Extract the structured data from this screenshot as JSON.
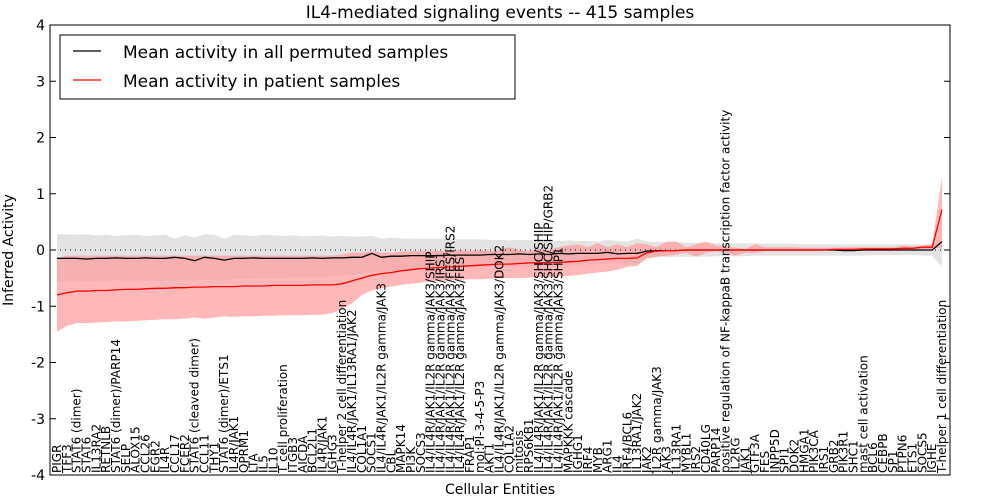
{
  "chart_data": {
    "type": "line",
    "title": "IL4-mediated signaling events -- 415 samples",
    "xlabel": "Cellular Entities",
    "ylabel": "Inferred Activity",
    "ylim": [
      -4,
      4
    ],
    "yticks": [
      "-4",
      "-3",
      "-2",
      "-1",
      "0",
      "1",
      "2",
      "3",
      "4"
    ],
    "legend_placement": "top-left",
    "reference_line": 0,
    "categories": [
      "PIGR",
      "TFF3",
      "STAT6 (dimer)",
      "STAT6",
      "IL13RA2",
      "RETNLB",
      "STAT6 (dimer)/PARP14",
      "SELP",
      "ALOX15",
      "CCL26",
      "EGR2",
      "IL4R",
      "CCL17",
      "FCER2",
      "STAT6 (cleaved dimer)",
      "CCL11",
      "THY1",
      "STAT6 (dimer)/ETS1",
      "IL4R/JAK1",
      "OPRM1",
      "LTA",
      "IL5",
      "IL10",
      "T cell proliferation",
      "ITGB3",
      "AICDA",
      "BCL2L1",
      "IL4R/JAK1",
      "IGHG3",
      "T-helper 2 cell differentiation",
      "IL4/IL4R/JAK1/IL13RA1/JAK2",
      "COL1A1",
      "SOCS1",
      "IL4/IL4R/JAK1/IL2R gamma/JAK3",
      "CBL",
      "MAPK14",
      "PI3K",
      "SOCS3",
      "IL4/IL4R/JAK1/IL2R gamma/JAK3/SHIP",
      "IL4/IL4R/JAK1/IL2R gamma/JAK3/IRS1",
      "IL4/IL4R/JAK1/IL2R gamma/JAK3/FES/IRS2",
      "IL4/IL4R/JAK1/IL2R gamma/JAK3/FES",
      "FRAP1",
      "mol:PI-3-4-5-P3",
      "AKT1",
      "IL4/IL4R/JAK1/IL2R gamma/JAK3/DOK2",
      "COL1A2",
      "mitosis",
      "RPS6KB1",
      "IL4/IL4R/JAK1/IL2R gamma/JAK3/SHC/SHIP",
      "IL4/IL4R/JAK1/IL2R gamma/JAK3/SHC/SHIP/GRB2",
      "IL4/IL4R/JAK1/IL2R gamma/JAK3/SHP1",
      "MAPKKK cascade",
      "IGHG1",
      "IRF4",
      "MYB",
      "ARG1",
      "IL4",
      "IRF4/BCL6",
      "IL13RA1/JAK2",
      "JAK2",
      "IL2R gamma/JAK3",
      "JAK3",
      "IL13RA1",
      "MYBL1",
      "IRS2",
      "CD40LG",
      "PARP14",
      "positive regulation of NF-kappaB transcription factor activity",
      "IL2RG",
      "JAK1",
      "GTF3A",
      "FES",
      "INPP5D",
      "SPI1",
      "DOK2",
      "HMGA1",
      "PIK3CA",
      "IRS1",
      "GRB2",
      "PIK3R1",
      "SHC1",
      "mast cell activation",
      "BCL6",
      "CEBPB",
      "SP1",
      "PTPN6",
      "ETS1",
      "SOCS5",
      "IGHE",
      "T-helper 1 cell differentiation"
    ],
    "series": [
      {
        "name": "Mean activity in all permuted samples",
        "color": "#000000",
        "band_color": "#cccccc",
        "values": [
          -0.15,
          -0.15,
          -0.15,
          -0.16,
          -0.15,
          -0.15,
          -0.14,
          -0.15,
          -0.15,
          -0.14,
          -0.15,
          -0.15,
          -0.13,
          -0.15,
          -0.19,
          -0.13,
          -0.15,
          -0.18,
          -0.15,
          -0.15,
          -0.14,
          -0.15,
          -0.15,
          -0.15,
          -0.15,
          -0.15,
          -0.14,
          -0.15,
          -0.14,
          -0.14,
          -0.13,
          -0.13,
          -0.06,
          -0.13,
          -0.11,
          -0.11,
          -0.1,
          -0.1,
          -0.1,
          -0.1,
          -0.09,
          -0.09,
          -0.09,
          -0.09,
          -0.08,
          -0.08,
          -0.08,
          -0.07,
          -0.08,
          -0.07,
          -0.08,
          -0.06,
          -0.07,
          -0.06,
          -0.06,
          -0.06,
          -0.04,
          -0.07,
          -0.06,
          -0.06,
          -0.02,
          -0.01,
          -0.01,
          -0.01,
          0,
          0,
          0,
          0,
          0,
          0,
          0,
          0,
          0,
          0,
          0,
          0,
          0,
          0,
          0,
          0,
          -0.01,
          -0.01,
          0,
          0,
          0,
          0,
          0,
          0,
          0,
          0,
          0.15
        ],
        "upper": [
          0.28,
          0.28,
          0.27,
          0.28,
          0.26,
          0.27,
          0.25,
          0.26,
          0.27,
          0.25,
          0.26,
          0.27,
          0.2,
          0.26,
          0.22,
          0.28,
          0.27,
          0.2,
          0.27,
          0.26,
          0.25,
          0.27,
          0.26,
          0.25,
          0.26,
          0.24,
          0.25,
          0.26,
          0.24,
          0.25,
          0.24,
          0.24,
          0.25,
          0.2,
          0.22,
          0.21,
          0.2,
          0.2,
          0.2,
          0.2,
          0.19,
          0.19,
          0.19,
          0.19,
          0.18,
          0.18,
          0.17,
          0.18,
          0.18,
          0.17,
          0.17,
          0.16,
          0.17,
          0.16,
          0.16,
          0.15,
          0.18,
          0.16,
          0.15,
          0.2,
          0.15,
          0.14,
          0.14,
          0.14,
          0.13,
          0.13,
          0.13,
          0.12,
          0.12,
          0.12,
          0.12,
          0.12,
          0.11,
          0.11,
          0.11,
          0.11,
          0.1,
          0.1,
          0.1,
          0.1,
          0.1,
          0.1,
          0.1,
          0.1,
          0.1,
          0.1,
          0.1,
          0.1,
          0.1,
          0.1,
          0.1
        ],
        "lower": [
          -0.55,
          -0.55,
          -0.55,
          -0.56,
          -0.55,
          -0.55,
          -0.54,
          -0.55,
          -0.55,
          -0.54,
          -0.55,
          -0.55,
          -0.52,
          -0.54,
          -0.56,
          -0.52,
          -0.53,
          -0.55,
          -0.52,
          -0.52,
          -0.5,
          -0.5,
          -0.5,
          -0.5,
          -0.49,
          -0.49,
          -0.48,
          -0.48,
          -0.47,
          -0.46,
          -0.44,
          -0.42,
          -0.38,
          -0.4,
          -0.38,
          -0.37,
          -0.36,
          -0.35,
          -0.34,
          -0.33,
          -0.33,
          -0.32,
          -0.32,
          -0.31,
          -0.3,
          -0.3,
          -0.3,
          -0.29,
          -0.29,
          -0.28,
          -0.28,
          -0.27,
          -0.27,
          -0.26,
          -0.26,
          -0.25,
          -0.22,
          -0.24,
          -0.23,
          -0.22,
          -0.15,
          -0.13,
          -0.13,
          -0.12,
          -0.12,
          -0.12,
          -0.12,
          -0.11,
          -0.11,
          -0.11,
          -0.11,
          -0.1,
          -0.1,
          -0.1,
          -0.1,
          -0.1,
          -0.1,
          -0.1,
          -0.1,
          -0.1,
          -0.1,
          -0.1,
          -0.1,
          -0.09,
          -0.09,
          -0.09,
          -0.09,
          -0.09,
          -0.09,
          -0.1,
          -0.3
        ]
      },
      {
        "name": "Mean activity in patient samples",
        "color": "#ff0000",
        "band_color": "#ff9999",
        "values": [
          -0.8,
          -0.76,
          -0.73,
          -0.73,
          -0.72,
          -0.72,
          -0.71,
          -0.7,
          -0.7,
          -0.69,
          -0.68,
          -0.68,
          -0.67,
          -0.67,
          -0.66,
          -0.66,
          -0.65,
          -0.65,
          -0.65,
          -0.64,
          -0.64,
          -0.64,
          -0.63,
          -0.63,
          -0.63,
          -0.63,
          -0.62,
          -0.62,
          -0.62,
          -0.6,
          -0.55,
          -0.5,
          -0.45,
          -0.42,
          -0.4,
          -0.37,
          -0.35,
          -0.33,
          -0.32,
          -0.31,
          -0.3,
          -0.29,
          -0.28,
          -0.27,
          -0.26,
          -0.25,
          -0.25,
          -0.24,
          -0.23,
          -0.23,
          -0.22,
          -0.22,
          -0.21,
          -0.2,
          -0.18,
          -0.17,
          -0.16,
          -0.15,
          -0.15,
          -0.14,
          -0.05,
          -0.02,
          -0.01,
          -0.01,
          0,
          0,
          0,
          0,
          0,
          0,
          0,
          0,
          0,
          0,
          0,
          0,
          0,
          0,
          0,
          0.01,
          0.01,
          0.01,
          0.02,
          0.02,
          0.02,
          0.02,
          0.03,
          0.03,
          0.05,
          0.05,
          0.72
        ],
        "upper": [
          -0.15,
          -0.1,
          -0.1,
          -0.1,
          -0.1,
          -0.1,
          -0.1,
          -0.1,
          -0.1,
          -0.1,
          -0.1,
          -0.1,
          -0.1,
          -0.1,
          -0.1,
          -0.1,
          -0.1,
          -0.1,
          -0.1,
          -0.1,
          -0.1,
          -0.1,
          -0.1,
          -0.1,
          -0.1,
          -0.1,
          -0.1,
          -0.1,
          -0.1,
          -0.08,
          -0.05,
          -0.05,
          -0.02,
          -0.05,
          -0.05,
          -0.03,
          -0.03,
          -0.02,
          -0.02,
          -0.02,
          -0.02,
          0,
          -0.02,
          0,
          -0.02,
          0,
          0.05,
          0,
          -0.02,
          0.02,
          0,
          0.05,
          0.08,
          0.1,
          0.05,
          0.12,
          0.05,
          0.1,
          0.05,
          0.12,
          0.1,
          0.05,
          0.15,
          0.15,
          0.05,
          0.1,
          0.15,
          0.08,
          0.06,
          0.04,
          0.02,
          0.1,
          0.05,
          0.05,
          0.05,
          0.05,
          0.04,
          0.04,
          0.04,
          0.04,
          0.05,
          0.05,
          0.05,
          0.05,
          0.05,
          0.05,
          0.08,
          0.06,
          0.08,
          0.1,
          1.3
        ],
        "lower": [
          -1.45,
          -1.35,
          -1.3,
          -1.3,
          -1.29,
          -1.28,
          -1.27,
          -1.27,
          -1.26,
          -1.25,
          -1.24,
          -1.23,
          -1.23,
          -1.22,
          -1.2,
          -1.22,
          -1.2,
          -1.18,
          -1.19,
          -1.18,
          -1.18,
          -1.17,
          -1.17,
          -1.16,
          -1.16,
          -1.16,
          -1.15,
          -1.15,
          -1.12,
          -1.05,
          -0.95,
          -0.8,
          -0.72,
          -0.68,
          -0.65,
          -0.62,
          -0.6,
          -0.58,
          -0.56,
          -0.55,
          -0.54,
          -0.53,
          -0.52,
          -0.52,
          -0.51,
          -0.5,
          -0.5,
          -0.5,
          -0.49,
          -0.48,
          -0.48,
          -0.47,
          -0.46,
          -0.45,
          -0.42,
          -0.4,
          -0.38,
          -0.35,
          -0.3,
          -0.28,
          -0.15,
          -0.12,
          -0.1,
          -0.08,
          -0.05,
          -0.12,
          -0.05,
          -0.02,
          -0.05,
          -0.1,
          -0.05,
          -0.05,
          -0.02,
          -0.02,
          -0.02,
          -0.02,
          -0.02,
          -0.02,
          -0.01,
          -0.01,
          0,
          0,
          0,
          0,
          0,
          0,
          0,
          0,
          0.02,
          0.02,
          0.05
        ]
      }
    ]
  }
}
